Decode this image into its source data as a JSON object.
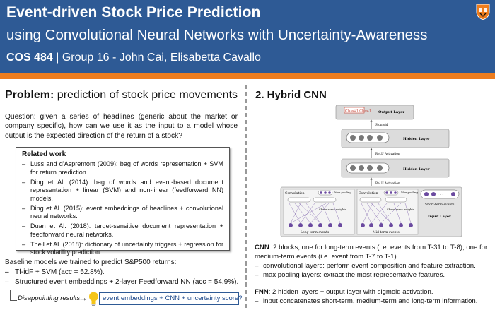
{
  "header": {
    "title_line1": "Event-driven Stock Price Prediction",
    "title_line2": "using Convolutional Neural Networks with Uncertainty-Awareness",
    "course": "COS 484",
    "separator": " | ",
    "authors": "Group 16 - John Cai, Elisabetta Cavallo",
    "logo_icon": "princeton-shield-icon",
    "colors": {
      "header_bg": "#2e5a95",
      "accent_bar": "#ee7d1e",
      "logo": "#ee7d1e"
    }
  },
  "problem": {
    "heading_bold": "Problem:",
    "heading_rest": " prediction of stock price movements",
    "question": "Question: given a series of headlines (generic about the market or company specific), how can we use it as the input to a model whose output is the expected direction of the return of a stock?"
  },
  "related_work": {
    "title": "Related work",
    "items": [
      "Luss and d'Aspremont (2009): bag of words representation + SVM for return prediction.",
      "Ding et Al. (2014): bag of words and event-based document representation + linear (SVM) and non-linear (feedforward NN) models.",
      "Ding et Al. (2015): event embeddings of headlines + convolutional neural networks.",
      "Duan et Al. (2018): target-sensitive document representation + feedforward neural networks.",
      "Theil et Al. (2018): dictionary of uncertainty triggers + regression for stock volatility prediction."
    ]
  },
  "baseline": {
    "intro": "Baseline models we trained to predict S&P500 returns:",
    "items": [
      "Tf-idF + SVM (acc = 52.8%).",
      "Structured event embeddings + 2-layer Feedforward NN (acc = 54.9%)."
    ]
  },
  "disappointing": {
    "text": "Disappointing results",
    "arrow": "→",
    "bulb_icon": "lightbulb-icon",
    "idea": "event embeddings + CNN + uncertainty score?"
  },
  "hybrid": {
    "heading": "2. Hybrid CNN",
    "diagram": {
      "class_labels": "Class+1 Class-1",
      "output_layer": "Output Layer",
      "sigmoid": "Sigmoid",
      "hidden_layer_1": "Hidden Layer",
      "relu_1": "ReLU Activation",
      "hidden_layer_2": "Hidden Layer",
      "relu_2": "ReLU Activation",
      "convolution_1": "Convolution",
      "max_pooling_1": "Max pooling",
      "share_weights_1": "Share same weights",
      "long_term": "Long-term events",
      "convolution_2": "Convolution",
      "max_pooling_2": "Max pooling",
      "share_weights_2": "Share same weights",
      "mid_term": "Mid-term events",
      "short_term": "Short-term events",
      "input_layer": "Input Layer",
      "node_label": "U",
      "ellipsis": "· · ·"
    },
    "cnn_bold": "CNN",
    "cnn_text": ": 2 blocks, one for long-term events (i.e. events from T-31 to T-8), one for medium-term events (i.e. event from T-7 to T-1).",
    "cnn_items": [
      "convolutional layers: perform event composition and feature extraction.",
      "max pooling layers: extract the most representative features."
    ],
    "fnn_bold": "FNN",
    "fnn_text": ": 2 hidden layers + output layer with sigmoid activation.",
    "fnn_items": [
      "input concatenates short-term, medium-term and long-term information."
    ]
  }
}
